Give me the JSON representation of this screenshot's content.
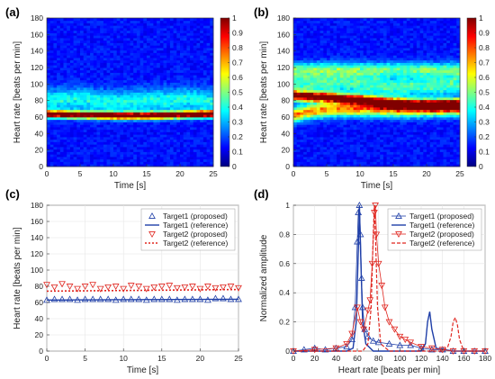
{
  "chart_data": [
    {
      "panel": "(a)",
      "type": "heatmap",
      "xlabel": "Time [s]",
      "ylabel": "Heart rate [beats per min]",
      "xlim": [
        0,
        25
      ],
      "ylim": [
        0,
        180
      ],
      "xticks": [
        "0",
        "5",
        "10",
        "15",
        "20",
        "25"
      ],
      "yticks": [
        "0",
        "20",
        "40",
        "60",
        "80",
        "100",
        "120",
        "140",
        "160",
        "180"
      ],
      "colorbar": {
        "ticks": [
          "0",
          "0.1",
          "0.2",
          "0.3",
          "0.4",
          "0.5",
          "0.6",
          "0.7",
          "0.8",
          "0.9",
          "1"
        ],
        "range": [
          0,
          1
        ]
      },
      "ridges": [
        {
          "amplitude": 1.0,
          "width": 3,
          "path": [
            [
              0,
              64
            ],
            [
              5,
              63
            ],
            [
              10,
              62
            ],
            [
              15,
              62
            ],
            [
              20,
              63
            ],
            [
              25,
              64
            ]
          ]
        },
        {
          "amplitude": 0.25,
          "width": 10,
          "path": [
            [
              0,
              80
            ],
            [
              5,
              82
            ],
            [
              10,
              78
            ],
            [
              15,
              80
            ],
            [
              20,
              82
            ],
            [
              25,
              80
            ]
          ]
        }
      ]
    },
    {
      "panel": "(b)",
      "type": "heatmap",
      "xlabel": "Time [s]",
      "ylabel": "Heart rate [beats per min]",
      "xlim": [
        0,
        25
      ],
      "ylim": [
        0,
        180
      ],
      "xticks": [
        "0",
        "5",
        "10",
        "15",
        "20",
        "25"
      ],
      "yticks": [
        "0",
        "20",
        "40",
        "60",
        "80",
        "100",
        "120",
        "140",
        "160",
        "180"
      ],
      "colorbar": {
        "ticks": [
          "0",
          "0.1",
          "0.2",
          "0.3",
          "0.4",
          "0.5",
          "0.6",
          "0.7",
          "0.8",
          "0.9",
          "1"
        ],
        "range": [
          0,
          1
        ]
      },
      "ridges": [
        {
          "amplitude": 0.95,
          "width": 4,
          "path": [
            [
              0,
              86
            ],
            [
              5,
              84
            ],
            [
              10,
              81
            ],
            [
              15,
              77
            ],
            [
              20,
              75
            ],
            [
              25,
              76
            ]
          ]
        },
        {
          "amplitude": 0.6,
          "width": 6,
          "path": [
            [
              0,
              63
            ],
            [
              3,
              68
            ],
            [
              7,
              70
            ],
            [
              12,
              70
            ],
            [
              17,
              69
            ],
            [
              22,
              70
            ],
            [
              25,
              70
            ]
          ]
        },
        {
          "amplitude": 0.3,
          "width": 10,
          "path": [
            [
              0,
              100
            ],
            [
              8,
              102
            ],
            [
              15,
              96
            ],
            [
              25,
              100
            ]
          ]
        },
        {
          "amplitude": 0.3,
          "width": 6,
          "path": [
            [
              21,
              118
            ],
            [
              25,
              118
            ]
          ]
        }
      ]
    },
    {
      "panel": "(c)",
      "type": "line",
      "xlabel": "Time [s]",
      "ylabel": "Heart rate [beats per min]",
      "xlim": [
        0,
        25
      ],
      "ylim": [
        0,
        180
      ],
      "xticks": [
        "0",
        "5",
        "10",
        "15",
        "20",
        "25"
      ],
      "yticks": [
        "0",
        "20",
        "40",
        "60",
        "80",
        "100",
        "120",
        "140",
        "160",
        "180"
      ],
      "legend": [
        "Target1 (proposed)",
        "Target1 (reference)",
        "Target2 (proposed)",
        "Target2 (reference)"
      ],
      "series": [
        {
          "name": "Target1 (proposed)",
          "x": [
            0,
            1,
            2,
            3,
            4,
            5,
            6,
            7,
            8,
            9,
            10,
            11,
            12,
            13,
            14,
            15,
            16,
            17,
            18,
            19,
            20,
            21,
            22,
            23,
            24,
            25
          ],
          "values": [
            63,
            64,
            64,
            64,
            63,
            64,
            64,
            64,
            64,
            63,
            64,
            64,
            64,
            63,
            64,
            64,
            64,
            63,
            64,
            64,
            64,
            63,
            65,
            65,
            64,
            64
          ]
        },
        {
          "name": "Target1 (reference)",
          "x": [
            0,
            25
          ],
          "values": [
            63,
            64
          ]
        },
        {
          "name": "Target2 (proposed)",
          "x": [
            0,
            1,
            2,
            3,
            4,
            5,
            6,
            7,
            8,
            9,
            10,
            11,
            12,
            13,
            14,
            15,
            16,
            17,
            18,
            19,
            20,
            21,
            22,
            23,
            24,
            25
          ],
          "values": [
            82,
            79,
            83,
            80,
            77,
            80,
            82,
            77,
            79,
            80,
            77,
            81,
            80,
            77,
            79,
            80,
            81,
            78,
            79,
            80,
            77,
            80,
            78,
            79,
            80,
            78
          ]
        },
        {
          "name": "Target2 (reference)",
          "x": [
            0,
            25
          ],
          "values": [
            74,
            76
          ]
        }
      ]
    },
    {
      "panel": "(d)",
      "type": "line",
      "xlabel": "Heart rate [beats per min]",
      "ylabel": "Normalized amplitude",
      "xlim": [
        0,
        180
      ],
      "ylim": [
        0,
        1
      ],
      "xticks": [
        "0",
        "20",
        "40",
        "60",
        "80",
        "100",
        "120",
        "140",
        "160",
        "180"
      ],
      "yticks": [
        "0",
        "0.2",
        "0.4",
        "0.6",
        "0.8",
        "1"
      ],
      "legend": [
        "Target1 (proposed)",
        "Target1 (reference)",
        "Target2 (proposed)",
        "Target2 (reference)"
      ],
      "series": [
        {
          "name": "Target1 (proposed)",
          "x": [
            0,
            10,
            20,
            30,
            40,
            50,
            55,
            58,
            60,
            61,
            62,
            63,
            64,
            65,
            67,
            70,
            75,
            80,
            90,
            100,
            110,
            120,
            130,
            140,
            150,
            160,
            170,
            180
          ],
          "values": [
            0.0,
            0.01,
            0.02,
            0.01,
            0.02,
            0.03,
            0.08,
            0.3,
            0.75,
            0.95,
            1.0,
            0.8,
            0.5,
            0.3,
            0.15,
            0.1,
            0.07,
            0.06,
            0.05,
            0.04,
            0.04,
            0.02,
            0.01,
            0.01,
            0.0,
            0.0,
            0.0,
            0.0
          ]
        },
        {
          "name": "Target1 (reference)",
          "x": [
            0,
            50,
            56,
            59,
            61,
            62,
            63,
            65,
            68,
            75,
            100,
            120,
            124,
            126,
            128,
            130,
            134,
            150,
            180
          ],
          "values": [
            0,
            0,
            0.02,
            0.2,
            0.7,
            1.0,
            0.7,
            0.2,
            0.05,
            0,
            0,
            0,
            0.05,
            0.2,
            0.27,
            0.15,
            0.02,
            0,
            0
          ]
        },
        {
          "name": "Target2 (proposed)",
          "x": [
            0,
            20,
            40,
            50,
            55,
            60,
            63,
            66,
            70,
            72,
            74,
            76,
            77,
            78,
            80,
            83,
            86,
            90,
            95,
            100,
            105,
            110,
            120,
            130,
            140,
            150,
            160,
            170,
            180
          ],
          "values": [
            0.0,
            0.01,
            0.02,
            0.05,
            0.12,
            0.3,
            0.2,
            0.15,
            0.28,
            0.35,
            0.6,
            0.95,
            1.0,
            0.8,
            0.6,
            0.45,
            0.3,
            0.2,
            0.15,
            0.1,
            0.08,
            0.06,
            0.03,
            0.02,
            0.01,
            0.0,
            0.0,
            0.0,
            0.0
          ]
        },
        {
          "name": "Target2 (reference)",
          "x": [
            0,
            65,
            70,
            73,
            75,
            76,
            77,
            79,
            82,
            90,
            140,
            145,
            148,
            150,
            152,
            154,
            156,
            160,
            180
          ],
          "values": [
            0,
            0,
            0.05,
            0.3,
            0.8,
            1.0,
            0.8,
            0.3,
            0.05,
            0,
            0,
            0.03,
            0.1,
            0.2,
            0.23,
            0.18,
            0.08,
            0.0,
            0
          ]
        }
      ]
    }
  ]
}
